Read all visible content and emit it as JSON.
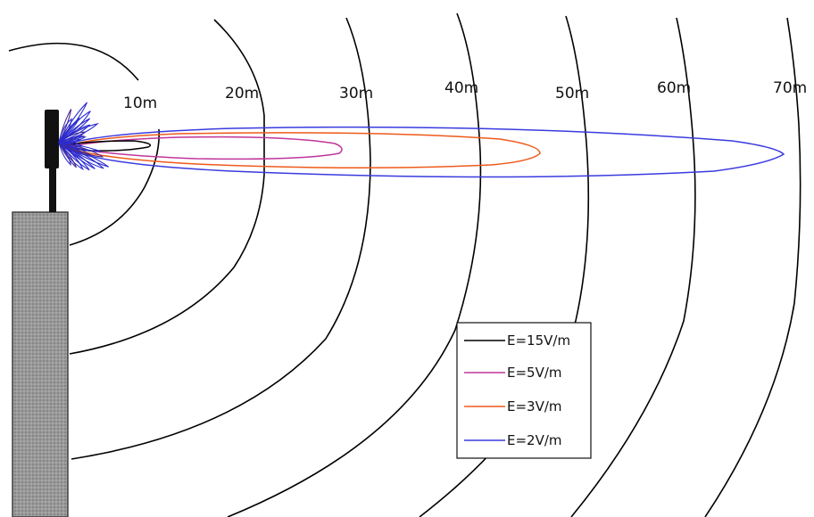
{
  "distance_labels": [
    "10m",
    "20m",
    "30m",
    "40m",
    "50m",
    "60m",
    "70m"
  ],
  "legend": {
    "items": [
      {
        "label": "E=15V/m",
        "color": "#000000"
      },
      {
        "label": "E=5V/m",
        "color": "#c0359c"
      },
      {
        "label": "E=3V/m",
        "color": "#ee5a1b"
      },
      {
        "label": "E=2V/m",
        "color": "#3a3adf"
      }
    ]
  },
  "colors": {
    "building": "#8a8a8a",
    "mast": "#111111",
    "antenna_pattern": "#2b2bd0"
  }
}
